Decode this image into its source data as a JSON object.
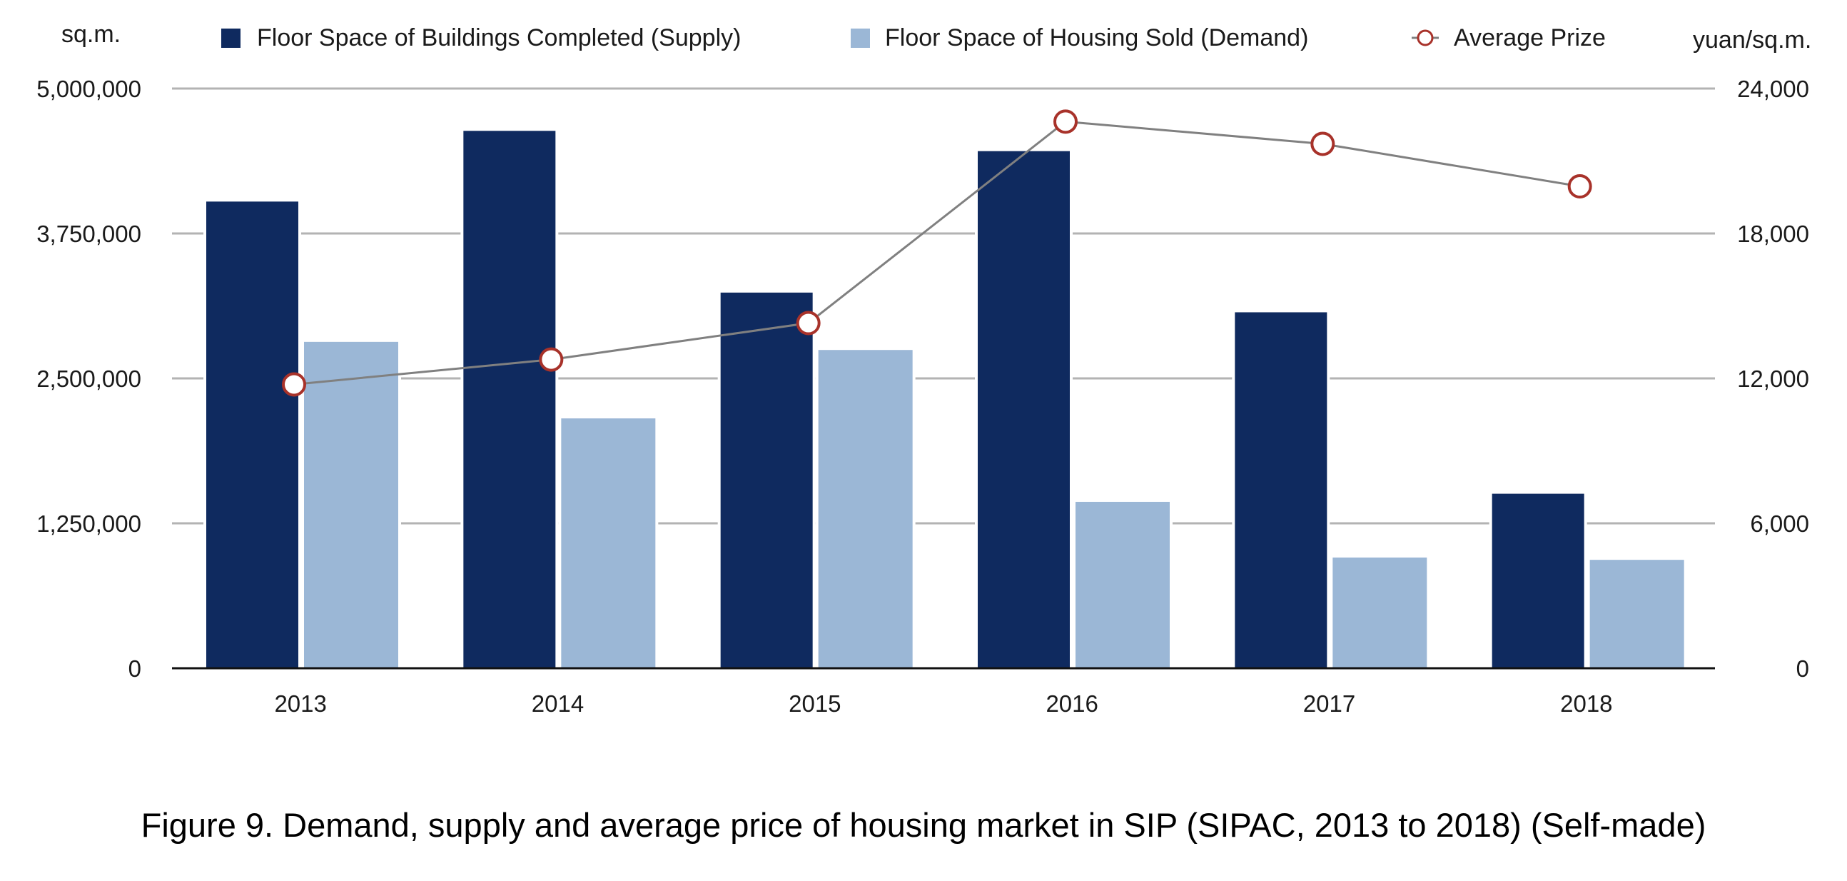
{
  "chart_data": {
    "type": "bar",
    "title": "",
    "caption": "Figure 9. Demand, supply and average price of housing market in SIP (SIPAC, 2013 to 2018) (Self-made)",
    "categories": [
      "2013",
      "2014",
      "2015",
      "2016",
      "2017",
      "2018"
    ],
    "xlabel": "",
    "ylabel": "sq.m.",
    "y2label": "yuan/sq.m.",
    "ylim": [
      0,
      5000000
    ],
    "y2lim": [
      0,
      24000
    ],
    "yticks": [
      "0",
      "1,250,000",
      "2,500,000",
      "3,750,000",
      "5,000,000"
    ],
    "ytick_values": [
      0,
      1250000,
      2500000,
      3750000,
      5000000
    ],
    "y2ticks": [
      "0",
      "6,000",
      "12,000",
      "18,000",
      "24,000"
    ],
    "y2tick_values": [
      0,
      6000,
      12000,
      18000,
      24000
    ],
    "grid": true,
    "legend_position": "top",
    "series": [
      {
        "name": "Floor Space of Buildings Completed (Supply)",
        "type": "bar",
        "axis": "left",
        "color": "#0f2a5f",
        "values": [
          4025000,
          4635000,
          3240000,
          4460000,
          3070000,
          1505000
        ]
      },
      {
        "name": "Floor Space of Housing Sold (Demand)",
        "type": "bar",
        "axis": "left",
        "color": "#9bb7d6",
        "values": [
          2815000,
          2155000,
          2745000,
          1435000,
          955000,
          935000
        ]
      },
      {
        "name": "Average Prize",
        "type": "line",
        "axis": "right",
        "color": "#a8322a",
        "line_color": "#808080",
        "values": [
          11750,
          12780,
          14290,
          22630,
          21710,
          19950
        ]
      }
    ]
  }
}
